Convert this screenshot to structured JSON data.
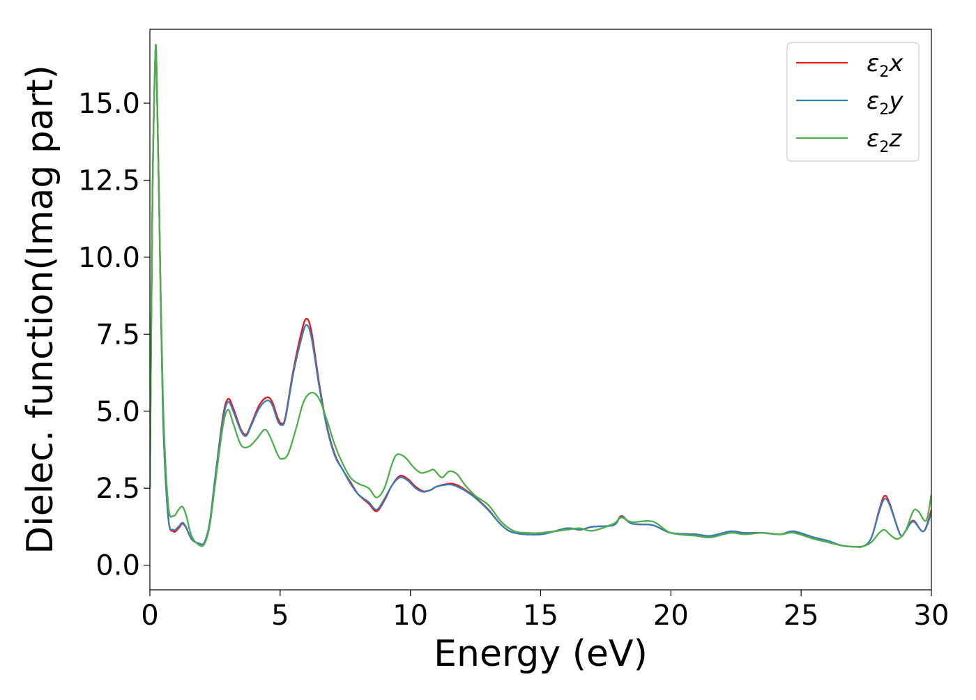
{
  "chart_data": {
    "type": "line",
    "xlabel": "Energy (eV)",
    "ylabel": "Dielec. function(Imag part)",
    "xlim": [
      0,
      30
    ],
    "ylim": [
      -0.8,
      17.4
    ],
    "x_ticks": [
      "0",
      "5",
      "10",
      "15",
      "20",
      "25",
      "30"
    ],
    "y_ticks": [
      "0.0",
      "2.5",
      "5.0",
      "7.5",
      "10.0",
      "12.5",
      "15.0"
    ],
    "grid": false,
    "legend_position": "top-right",
    "series": [
      {
        "name": "ε2x",
        "legend_base": "ε",
        "legend_sub": "2",
        "legend_tail": "x",
        "color": "#e41a1c",
        "points": [
          [
            0,
            2.5
          ],
          [
            0.1,
            12
          ],
          [
            0.2,
            16.3
          ],
          [
            0.25,
            16.4
          ],
          [
            0.35,
            12
          ],
          [
            0.5,
            5
          ],
          [
            0.7,
            1.6
          ],
          [
            0.9,
            1.1
          ],
          [
            1.1,
            1.2
          ],
          [
            1.25,
            1.35
          ],
          [
            1.4,
            1.2
          ],
          [
            1.6,
            0.85
          ],
          [
            1.9,
            0.7
          ],
          [
            2.1,
            0.75
          ],
          [
            2.3,
            1.4
          ],
          [
            2.5,
            2.8
          ],
          [
            2.8,
            4.8
          ],
          [
            3.0,
            5.4
          ],
          [
            3.2,
            5.1
          ],
          [
            3.5,
            4.4
          ],
          [
            3.7,
            4.25
          ],
          [
            3.9,
            4.6
          ],
          [
            4.2,
            5.2
          ],
          [
            4.5,
            5.45
          ],
          [
            4.7,
            5.3
          ],
          [
            4.9,
            4.8
          ],
          [
            5.05,
            4.6
          ],
          [
            5.2,
            4.8
          ],
          [
            5.5,
            6.3
          ],
          [
            5.8,
            7.5
          ],
          [
            6.0,
            8.0
          ],
          [
            6.2,
            7.6
          ],
          [
            6.5,
            5.9
          ],
          [
            6.8,
            4.5
          ],
          [
            7.1,
            3.6
          ],
          [
            7.4,
            3.1
          ],
          [
            7.7,
            2.7
          ],
          [
            8.0,
            2.3
          ],
          [
            8.4,
            2.0
          ],
          [
            8.7,
            1.75
          ],
          [
            9.0,
            2.1
          ],
          [
            9.3,
            2.6
          ],
          [
            9.6,
            2.9
          ],
          [
            9.9,
            2.8
          ],
          [
            10.2,
            2.55
          ],
          [
            10.5,
            2.4
          ],
          [
            10.8,
            2.45
          ],
          [
            11.0,
            2.55
          ],
          [
            11.5,
            2.65
          ],
          [
            11.8,
            2.6
          ],
          [
            12.1,
            2.45
          ],
          [
            12.5,
            2.2
          ],
          [
            13.0,
            1.8
          ],
          [
            13.5,
            1.3
          ],
          [
            14.0,
            1.05
          ],
          [
            15.0,
            1.0
          ],
          [
            16.0,
            1.2
          ],
          [
            16.5,
            1.15
          ],
          [
            17.0,
            1.25
          ],
          [
            17.8,
            1.3
          ],
          [
            18.1,
            1.6
          ],
          [
            18.5,
            1.35
          ],
          [
            19.3,
            1.3
          ],
          [
            20.0,
            1.05
          ],
          [
            21.0,
            1.0
          ],
          [
            21.5,
            0.95
          ],
          [
            22.3,
            1.1
          ],
          [
            22.8,
            1.05
          ],
          [
            23.5,
            1.05
          ],
          [
            24.2,
            1.0
          ],
          [
            24.7,
            1.1
          ],
          [
            25.5,
            0.9
          ],
          [
            26.0,
            0.8
          ],
          [
            26.5,
            0.65
          ],
          [
            27.0,
            0.6
          ],
          [
            27.4,
            0.62
          ],
          [
            27.7,
            0.9
          ],
          [
            28.0,
            1.8
          ],
          [
            28.2,
            2.25
          ],
          [
            28.4,
            2.0
          ],
          [
            28.8,
            1.0
          ],
          [
            29.0,
            1.1
          ],
          [
            29.3,
            1.45
          ],
          [
            29.7,
            1.1
          ],
          [
            30.0,
            1.8
          ]
        ]
      },
      {
        "name": "ε2y",
        "legend_base": "ε",
        "legend_sub": "2",
        "legend_tail": "y",
        "color": "#377eb8",
        "points": [
          [
            0,
            2.5
          ],
          [
            0.1,
            12
          ],
          [
            0.2,
            16.3
          ],
          [
            0.25,
            16.4
          ],
          [
            0.35,
            12
          ],
          [
            0.5,
            5
          ],
          [
            0.7,
            1.6
          ],
          [
            0.9,
            1.15
          ],
          [
            1.1,
            1.25
          ],
          [
            1.25,
            1.38
          ],
          [
            1.4,
            1.22
          ],
          [
            1.6,
            0.85
          ],
          [
            1.9,
            0.7
          ],
          [
            2.1,
            0.75
          ],
          [
            2.3,
            1.4
          ],
          [
            2.5,
            2.8
          ],
          [
            2.8,
            4.7
          ],
          [
            3.0,
            5.3
          ],
          [
            3.2,
            5.0
          ],
          [
            3.5,
            4.35
          ],
          [
            3.7,
            4.2
          ],
          [
            3.9,
            4.55
          ],
          [
            4.2,
            5.1
          ],
          [
            4.5,
            5.35
          ],
          [
            4.7,
            5.2
          ],
          [
            4.9,
            4.7
          ],
          [
            5.05,
            4.55
          ],
          [
            5.2,
            4.75
          ],
          [
            5.5,
            6.2
          ],
          [
            5.8,
            7.3
          ],
          [
            6.0,
            7.8
          ],
          [
            6.2,
            7.4
          ],
          [
            6.5,
            5.8
          ],
          [
            6.8,
            4.45
          ],
          [
            7.1,
            3.55
          ],
          [
            7.4,
            3.1
          ],
          [
            7.7,
            2.65
          ],
          [
            8.0,
            2.3
          ],
          [
            8.4,
            2.05
          ],
          [
            8.7,
            1.8
          ],
          [
            9.0,
            2.15
          ],
          [
            9.3,
            2.6
          ],
          [
            9.6,
            2.85
          ],
          [
            9.9,
            2.75
          ],
          [
            10.2,
            2.5
          ],
          [
            10.5,
            2.38
          ],
          [
            10.8,
            2.45
          ],
          [
            11.0,
            2.55
          ],
          [
            11.5,
            2.62
          ],
          [
            11.8,
            2.55
          ],
          [
            12.1,
            2.42
          ],
          [
            12.5,
            2.18
          ],
          [
            13.0,
            1.78
          ],
          [
            13.5,
            1.3
          ],
          [
            14.0,
            1.05
          ],
          [
            15.0,
            1.0
          ],
          [
            16.0,
            1.2
          ],
          [
            16.5,
            1.15
          ],
          [
            17.0,
            1.25
          ],
          [
            17.8,
            1.3
          ],
          [
            18.1,
            1.58
          ],
          [
            18.5,
            1.35
          ],
          [
            19.3,
            1.3
          ],
          [
            20.0,
            1.05
          ],
          [
            21.0,
            1.0
          ],
          [
            21.5,
            0.95
          ],
          [
            22.3,
            1.1
          ],
          [
            22.8,
            1.05
          ],
          [
            23.5,
            1.05
          ],
          [
            24.2,
            1.0
          ],
          [
            24.7,
            1.1
          ],
          [
            25.5,
            0.9
          ],
          [
            26.0,
            0.8
          ],
          [
            26.5,
            0.65
          ],
          [
            27.0,
            0.6
          ],
          [
            27.4,
            0.62
          ],
          [
            27.7,
            0.9
          ],
          [
            28.0,
            1.75
          ],
          [
            28.2,
            2.15
          ],
          [
            28.4,
            1.95
          ],
          [
            28.8,
            1.0
          ],
          [
            29.0,
            1.1
          ],
          [
            29.3,
            1.42
          ],
          [
            29.7,
            1.1
          ],
          [
            30.0,
            1.7
          ]
        ]
      },
      {
        "name": "ε2z",
        "legend_base": "ε",
        "legend_sub": "2",
        "legend_tail": "z",
        "color": "#4daf4a",
        "points": [
          [
            0,
            2.5
          ],
          [
            0.1,
            12
          ],
          [
            0.2,
            16.3
          ],
          [
            0.25,
            16.4
          ],
          [
            0.35,
            12
          ],
          [
            0.5,
            5.5
          ],
          [
            0.7,
            2.0
          ],
          [
            0.9,
            1.6
          ],
          [
            1.1,
            1.8
          ],
          [
            1.25,
            1.9
          ],
          [
            1.4,
            1.6
          ],
          [
            1.6,
            0.95
          ],
          [
            1.9,
            0.65
          ],
          [
            2.1,
            0.7
          ],
          [
            2.3,
            1.3
          ],
          [
            2.5,
            2.6
          ],
          [
            2.8,
            4.5
          ],
          [
            3.0,
            5.05
          ],
          [
            3.2,
            4.6
          ],
          [
            3.5,
            3.9
          ],
          [
            3.8,
            3.85
          ],
          [
            4.1,
            4.1
          ],
          [
            4.4,
            4.4
          ],
          [
            4.6,
            4.2
          ],
          [
            4.9,
            3.6
          ],
          [
            5.05,
            3.45
          ],
          [
            5.3,
            3.6
          ],
          [
            5.6,
            4.4
          ],
          [
            5.9,
            5.3
          ],
          [
            6.2,
            5.6
          ],
          [
            6.5,
            5.4
          ],
          [
            6.8,
            4.7
          ],
          [
            7.1,
            3.9
          ],
          [
            7.4,
            3.3
          ],
          [
            7.7,
            2.85
          ],
          [
            8.0,
            2.65
          ],
          [
            8.4,
            2.5
          ],
          [
            8.7,
            2.2
          ],
          [
            9.0,
            2.5
          ],
          [
            9.3,
            3.3
          ],
          [
            9.5,
            3.6
          ],
          [
            9.8,
            3.5
          ],
          [
            10.1,
            3.2
          ],
          [
            10.4,
            3.0
          ],
          [
            10.7,
            3.05
          ],
          [
            10.9,
            3.1
          ],
          [
            11.2,
            2.85
          ],
          [
            11.5,
            3.05
          ],
          [
            11.8,
            2.95
          ],
          [
            12.1,
            2.6
          ],
          [
            12.5,
            2.25
          ],
          [
            13.0,
            1.95
          ],
          [
            13.5,
            1.4
          ],
          [
            14.0,
            1.1
          ],
          [
            14.5,
            1.05
          ],
          [
            15.0,
            1.05
          ],
          [
            16.0,
            1.15
          ],
          [
            16.5,
            1.2
          ],
          [
            17.0,
            1.12
          ],
          [
            17.8,
            1.35
          ],
          [
            18.1,
            1.55
          ],
          [
            18.5,
            1.4
          ],
          [
            19.3,
            1.42
          ],
          [
            20.0,
            1.05
          ],
          [
            21.0,
            0.95
          ],
          [
            21.5,
            0.9
          ],
          [
            22.3,
            1.05
          ],
          [
            22.8,
            1.0
          ],
          [
            23.5,
            1.05
          ],
          [
            24.2,
            1.0
          ],
          [
            24.7,
            1.05
          ],
          [
            25.5,
            0.85
          ],
          [
            26.0,
            0.75
          ],
          [
            26.5,
            0.65
          ],
          [
            27.0,
            0.6
          ],
          [
            27.4,
            0.62
          ],
          [
            27.7,
            0.75
          ],
          [
            28.0,
            1.05
          ],
          [
            28.2,
            1.15
          ],
          [
            28.4,
            1.0
          ],
          [
            28.7,
            0.85
          ],
          [
            29.0,
            1.1
          ],
          [
            29.3,
            1.75
          ],
          [
            29.5,
            1.75
          ],
          [
            29.8,
            1.45
          ],
          [
            30.0,
            2.3
          ]
        ]
      }
    ]
  }
}
